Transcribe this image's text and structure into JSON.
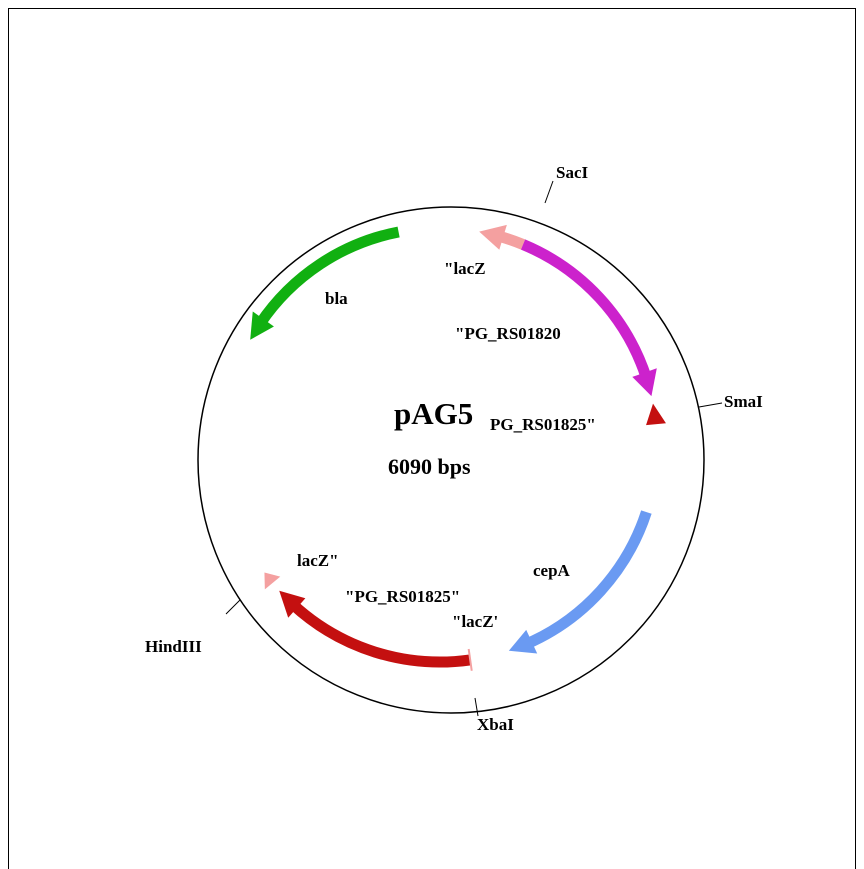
{
  "map": {
    "title": "pAG5",
    "size": "6090 bps",
    "labels": [
      "\"lacZ",
      "bla",
      "\"PG_RS01820",
      "PG_RS01825\"",
      "cepA",
      "lacZ\"",
      "\"PG_RS01825\"",
      "\"lacZ'"
    ],
    "sites": [
      "SacI",
      "SmaI",
      "XbaI",
      "HindIII"
    ]
  }
}
